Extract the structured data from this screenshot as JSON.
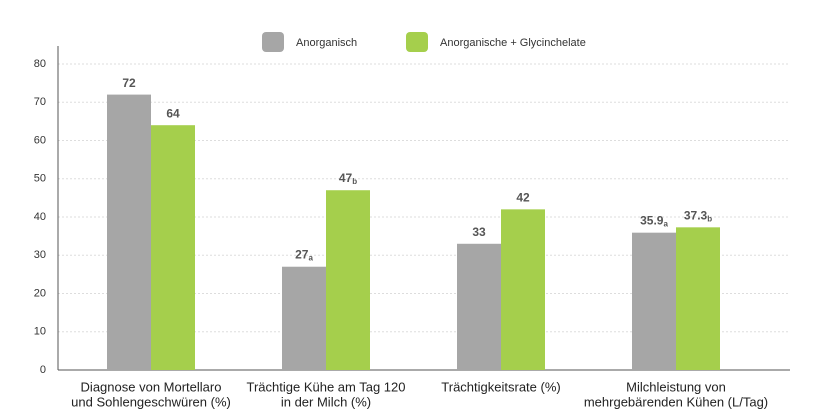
{
  "chart_data": {
    "type": "bar",
    "categories": [
      [
        "Diagnose von Mortellaro",
        "und Sohlengeschwüren (%)"
      ],
      [
        "Trächtige Kühe am Tag 120",
        "in der Milch (%)"
      ],
      [
        "Trächtigkeitsrate (%)"
      ],
      [
        "Milchleistung von",
        "mehrgebärenden Kühen (L/Tag)"
      ]
    ],
    "series": [
      {
        "name": "Anorganisch",
        "color": "#a6a6a6",
        "values": [
          72,
          27,
          33,
          35.9
        ],
        "value_labels": [
          "72",
          "27a",
          "33",
          "35.9a"
        ]
      },
      {
        "name": "Anorganische + Glycinchelate",
        "color": "#a5cf4c",
        "values": [
          64,
          47,
          42,
          37.3
        ],
        "value_labels": [
          "64",
          "47b",
          "42",
          "37.3b"
        ]
      }
    ],
    "ylim": [
      0,
      80
    ],
    "yticks": [
      0,
      10,
      20,
      30,
      40,
      50,
      60,
      70,
      80
    ],
    "grid": true
  }
}
